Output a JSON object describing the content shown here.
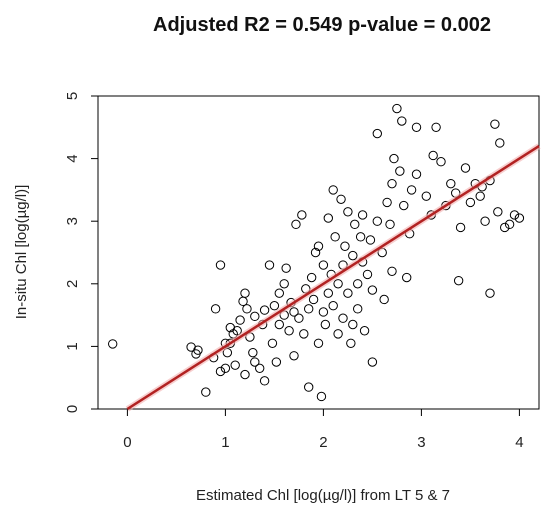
{
  "chart_data": {
    "type": "scatter",
    "title": "Adjusted R2 = 0.549 p-value = 0.002",
    "xlabel": "Estimated Chl [log(µg/l)] from LT 5 & 7",
    "ylabel": "In-situ Chl [log(µg/l)]",
    "xlim": [
      -0.3,
      4.2
    ],
    "ylim": [
      0,
      5
    ],
    "x_ticks": [
      "0",
      "1",
      "2",
      "3",
      "4"
    ],
    "y_ticks": [
      "0",
      "1",
      "2",
      "3",
      "4",
      "5"
    ],
    "grid": false,
    "fit_line": {
      "slope": 1.0,
      "intercept": 0.0,
      "color": "#b22222"
    },
    "point_style": {
      "marker": "open-circle",
      "color": "#000000"
    },
    "points": [
      [
        -0.15,
        1.04
      ],
      [
        0.65,
        0.99
      ],
      [
        0.7,
        0.88
      ],
      [
        0.72,
        0.94
      ],
      [
        0.8,
        0.27
      ],
      [
        0.88,
        0.82
      ],
      [
        0.9,
        1.6
      ],
      [
        0.95,
        2.3
      ],
      [
        1.0,
        1.05
      ],
      [
        1.05,
        1.3
      ],
      [
        0.95,
        0.6
      ],
      [
        1.0,
        0.65
      ],
      [
        1.02,
        0.9
      ],
      [
        1.05,
        1.05
      ],
      [
        1.08,
        1.2
      ],
      [
        1.1,
        0.7
      ],
      [
        1.12,
        1.25
      ],
      [
        1.15,
        1.42
      ],
      [
        1.18,
        1.72
      ],
      [
        1.2,
        1.85
      ],
      [
        1.2,
        0.55
      ],
      [
        1.22,
        1.6
      ],
      [
        1.25,
        1.15
      ],
      [
        1.28,
        0.9
      ],
      [
        1.3,
        0.75
      ],
      [
        1.3,
        1.48
      ],
      [
        1.35,
        0.65
      ],
      [
        1.38,
        1.35
      ],
      [
        1.4,
        1.58
      ],
      [
        1.4,
        0.45
      ],
      [
        1.45,
        2.3
      ],
      [
        1.48,
        1.05
      ],
      [
        1.5,
        1.65
      ],
      [
        1.52,
        0.75
      ],
      [
        1.55,
        1.85
      ],
      [
        1.55,
        1.35
      ],
      [
        1.6,
        1.5
      ],
      [
        1.6,
        2.0
      ],
      [
        1.62,
        2.25
      ],
      [
        1.65,
        1.25
      ],
      [
        1.67,
        1.7
      ],
      [
        1.7,
        1.55
      ],
      [
        1.7,
        0.85
      ],
      [
        1.72,
        2.95
      ],
      [
        1.75,
        1.45
      ],
      [
        1.78,
        3.1
      ],
      [
        1.8,
        1.2
      ],
      [
        1.82,
        1.92
      ],
      [
        1.85,
        1.6
      ],
      [
        1.85,
        0.35
      ],
      [
        1.88,
        2.1
      ],
      [
        1.9,
        1.75
      ],
      [
        1.92,
        2.5
      ],
      [
        1.95,
        1.05
      ],
      [
        1.95,
        2.6
      ],
      [
        1.98,
        0.2
      ],
      [
        2.0,
        1.55
      ],
      [
        2.0,
        2.3
      ],
      [
        2.02,
        1.35
      ],
      [
        2.05,
        1.85
      ],
      [
        2.05,
        3.05
      ],
      [
        2.08,
        2.15
      ],
      [
        2.1,
        1.65
      ],
      [
        2.1,
        3.5
      ],
      [
        2.12,
        2.75
      ],
      [
        2.15,
        1.2
      ],
      [
        2.15,
        2.0
      ],
      [
        2.18,
        3.35
      ],
      [
        2.2,
        2.3
      ],
      [
        2.2,
        1.45
      ],
      [
        2.22,
        2.6
      ],
      [
        2.25,
        1.85
      ],
      [
        2.25,
        3.15
      ],
      [
        2.28,
        1.05
      ],
      [
        2.3,
        2.45
      ],
      [
        2.3,
        1.35
      ],
      [
        2.32,
        2.95
      ],
      [
        2.35,
        2.0
      ],
      [
        2.35,
        1.6
      ],
      [
        2.38,
        2.75
      ],
      [
        2.4,
        2.35
      ],
      [
        2.4,
        3.1
      ],
      [
        2.42,
        1.25
      ],
      [
        2.45,
        2.15
      ],
      [
        2.48,
        2.7
      ],
      [
        2.5,
        1.9
      ],
      [
        2.5,
        0.75
      ],
      [
        2.55,
        3.0
      ],
      [
        2.55,
        4.4
      ],
      [
        2.6,
        2.5
      ],
      [
        2.62,
        1.75
      ],
      [
        2.65,
        3.3
      ],
      [
        2.68,
        2.95
      ],
      [
        2.7,
        3.6
      ],
      [
        2.7,
        2.2
      ],
      [
        2.72,
        4.0
      ],
      [
        2.75,
        4.8
      ],
      [
        2.78,
        3.8
      ],
      [
        2.8,
        4.6
      ],
      [
        2.82,
        3.25
      ],
      [
        2.85,
        2.1
      ],
      [
        2.88,
        2.8
      ],
      [
        2.9,
        3.5
      ],
      [
        2.95,
        3.75
      ],
      [
        2.95,
        4.5
      ],
      [
        3.05,
        3.4
      ],
      [
        3.1,
        3.1
      ],
      [
        3.12,
        4.05
      ],
      [
        3.15,
        4.5
      ],
      [
        3.2,
        3.95
      ],
      [
        3.25,
        3.25
      ],
      [
        3.3,
        3.6
      ],
      [
        3.35,
        3.45
      ],
      [
        3.38,
        2.05
      ],
      [
        3.4,
        2.9
      ],
      [
        3.45,
        3.85
      ],
      [
        3.5,
        3.3
      ],
      [
        3.55,
        3.6
      ],
      [
        3.6,
        3.4
      ],
      [
        3.62,
        3.55
      ],
      [
        3.65,
        3.0
      ],
      [
        3.7,
        1.85
      ],
      [
        3.7,
        3.65
      ],
      [
        3.75,
        4.55
      ],
      [
        3.78,
        3.15
      ],
      [
        3.8,
        4.25
      ],
      [
        3.85,
        2.9
      ],
      [
        3.9,
        2.95
      ],
      [
        3.95,
        3.1
      ],
      [
        4.0,
        3.05
      ]
    ]
  }
}
